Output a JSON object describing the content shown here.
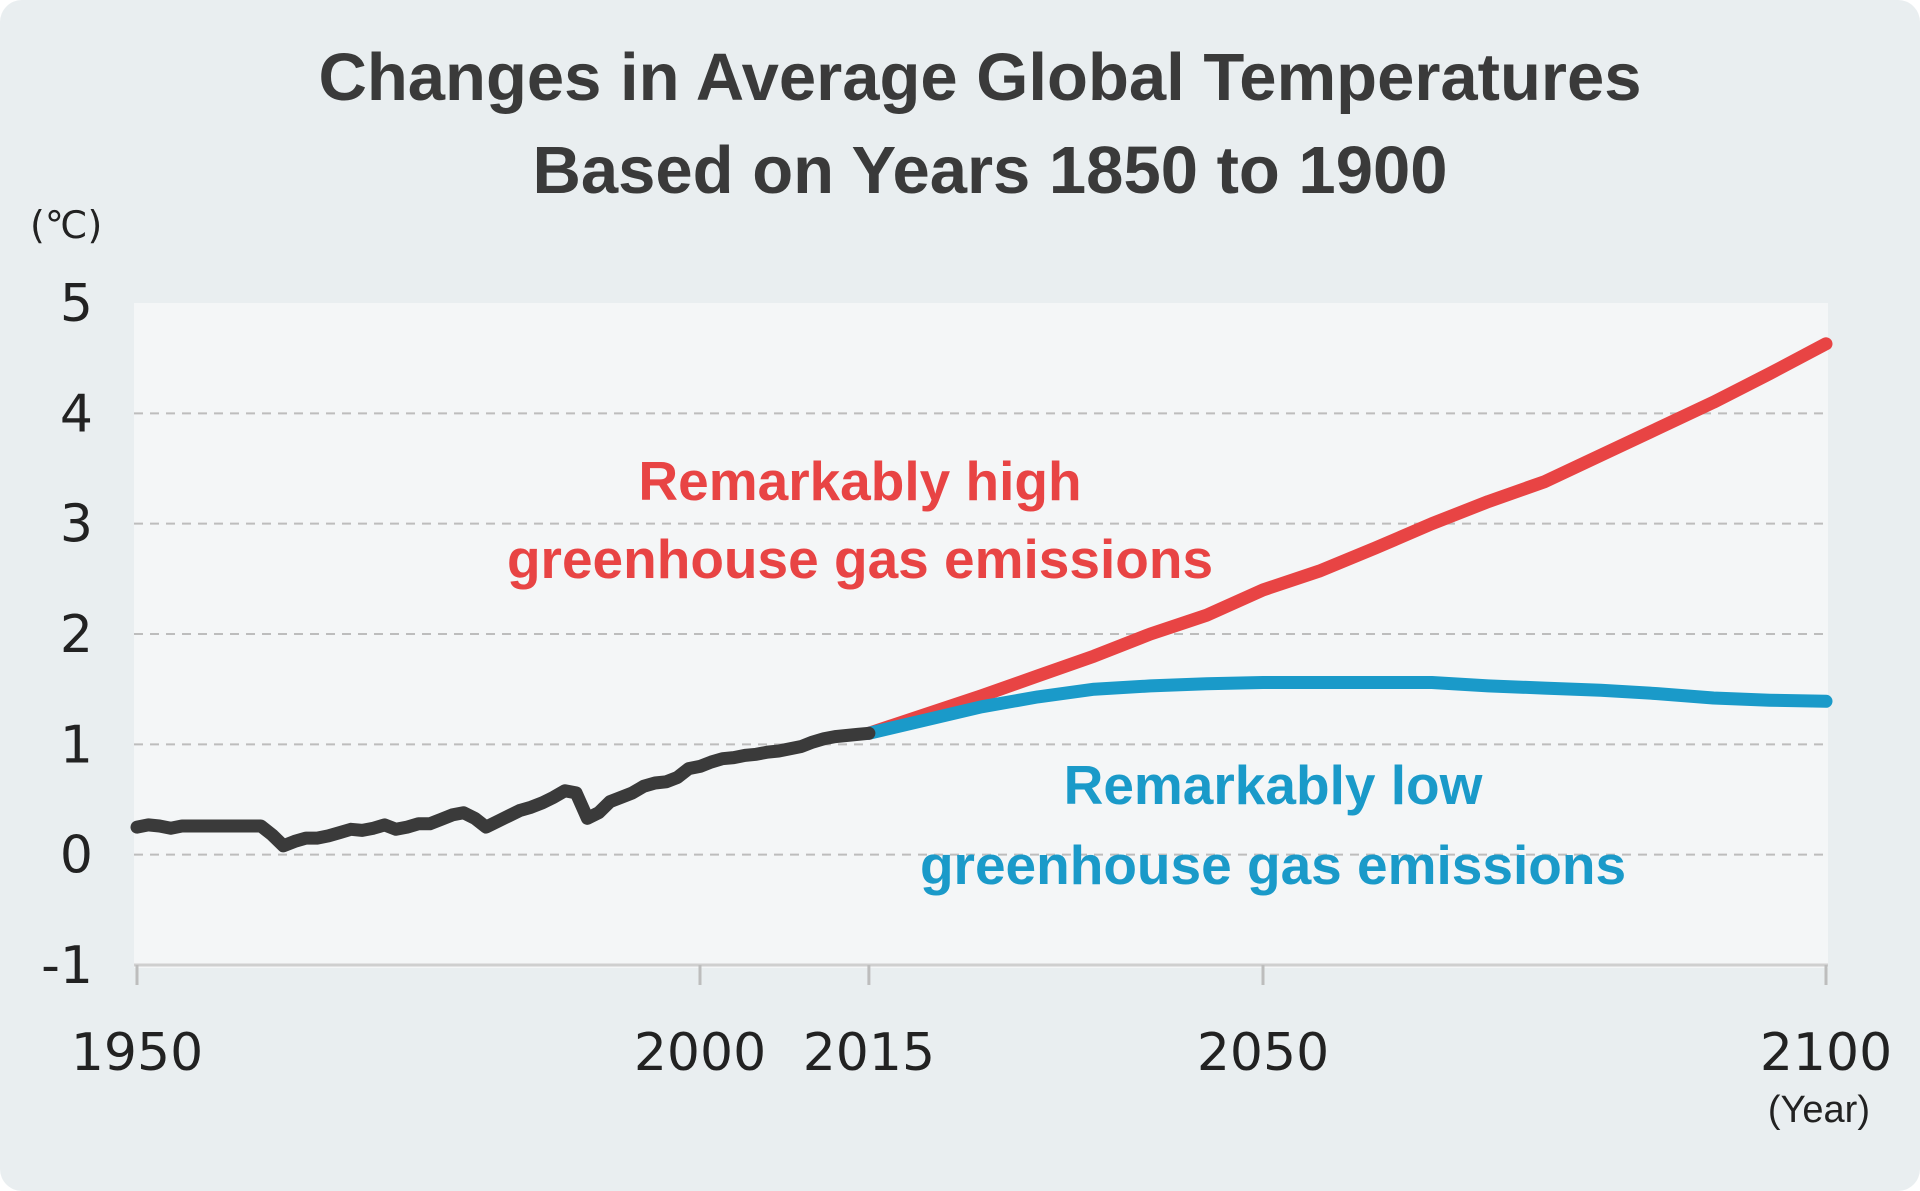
{
  "chart_data": {
    "type": "line",
    "title": [
      "Changes in Average Global Temperatures",
      "Based on Years 1850 to 1900"
    ],
    "ylabel": "(℃)",
    "xlabel": "(Year)",
    "xlim": [
      1950,
      2100
    ],
    "ylim": [
      -1,
      5
    ],
    "yticks": [
      "5",
      "4",
      "3",
      "2",
      "1",
      "0",
      "-1"
    ],
    "ytick_values": [
      5,
      4,
      3,
      2,
      1,
      0,
      -1
    ],
    "xticks": [
      "1950",
      "2000",
      "2015",
      "2050",
      "2100"
    ],
    "xtick_values": [
      1950,
      2000,
      2015,
      2050,
      2100
    ],
    "grid": true,
    "colors": {
      "observed": "#3a3a3a",
      "high": "#e84444",
      "low": "#1a9ac9",
      "plot_bg": "#f4f6f7",
      "grid": "#bdbdbd"
    },
    "annotations": {
      "high": [
        "Remarkably high",
        "greenhouse gas emissions"
      ],
      "low": [
        "Remarkably low",
        "greenhouse gas emissions"
      ]
    },
    "series": [
      {
        "id": "observed",
        "x": [
          1950,
          1951,
          1952,
          1953,
          1954,
          1955,
          1956,
          1957,
          1958,
          1959,
          1960,
          1961,
          1962,
          1963,
          1964,
          1965,
          1966,
          1967,
          1968,
          1969,
          1970,
          1971,
          1972,
          1973,
          1974,
          1975,
          1976,
          1977,
          1978,
          1979,
          1980,
          1981,
          1982,
          1983,
          1984,
          1985,
          1986,
          1987,
          1988,
          1989,
          1990,
          1991,
          1992,
          1993,
          1994,
          1995,
          1996,
          1997,
          1998,
          1999,
          2000,
          2001,
          2002,
          2003,
          2004,
          2005,
          2006,
          2007,
          2008,
          2009,
          2010,
          2011,
          2012,
          2013,
          2014,
          2015
        ],
        "y": [
          0.25,
          0.27,
          0.26,
          0.24,
          0.26,
          0.26,
          0.26,
          0.26,
          0.26,
          0.26,
          0.26,
          0.26,
          0.18,
          0.08,
          0.12,
          0.15,
          0.15,
          0.17,
          0.2,
          0.23,
          0.22,
          0.24,
          0.27,
          0.23,
          0.25,
          0.28,
          0.28,
          0.32,
          0.36,
          0.38,
          0.33,
          0.25,
          0.3,
          0.35,
          0.4,
          0.43,
          0.47,
          0.52,
          0.58,
          0.56,
          0.33,
          0.38,
          0.48,
          0.52,
          0.56,
          0.62,
          0.65,
          0.66,
          0.7,
          0.78,
          0.8,
          0.84,
          0.87,
          0.88,
          0.9,
          0.91,
          0.93,
          0.94,
          0.96,
          0.98,
          1.02,
          1.05,
          1.07,
          1.08,
          1.09,
          1.1
        ]
      },
      {
        "id": "high",
        "x": [
          2015,
          2020,
          2025,
          2030,
          2035,
          2040,
          2045,
          2050,
          2055,
          2060,
          2065,
          2070,
          2075,
          2080,
          2085,
          2090,
          2095,
          2100
        ],
        "y": [
          1.1,
          1.27,
          1.44,
          1.62,
          1.8,
          2.0,
          2.17,
          2.4,
          2.57,
          2.78,
          3.0,
          3.2,
          3.38,
          3.62,
          3.86,
          4.1,
          4.36,
          4.63
        ]
      },
      {
        "id": "low",
        "x": [
          2015,
          2020,
          2025,
          2030,
          2035,
          2040,
          2045,
          2050,
          2055,
          2060,
          2065,
          2070,
          2075,
          2080,
          2085,
          2090,
          2095,
          2100
        ],
        "y": [
          1.1,
          1.22,
          1.34,
          1.43,
          1.5,
          1.53,
          1.55,
          1.56,
          1.56,
          1.56,
          1.56,
          1.53,
          1.51,
          1.49,
          1.46,
          1.42,
          1.4,
          1.39
        ]
      }
    ]
  }
}
